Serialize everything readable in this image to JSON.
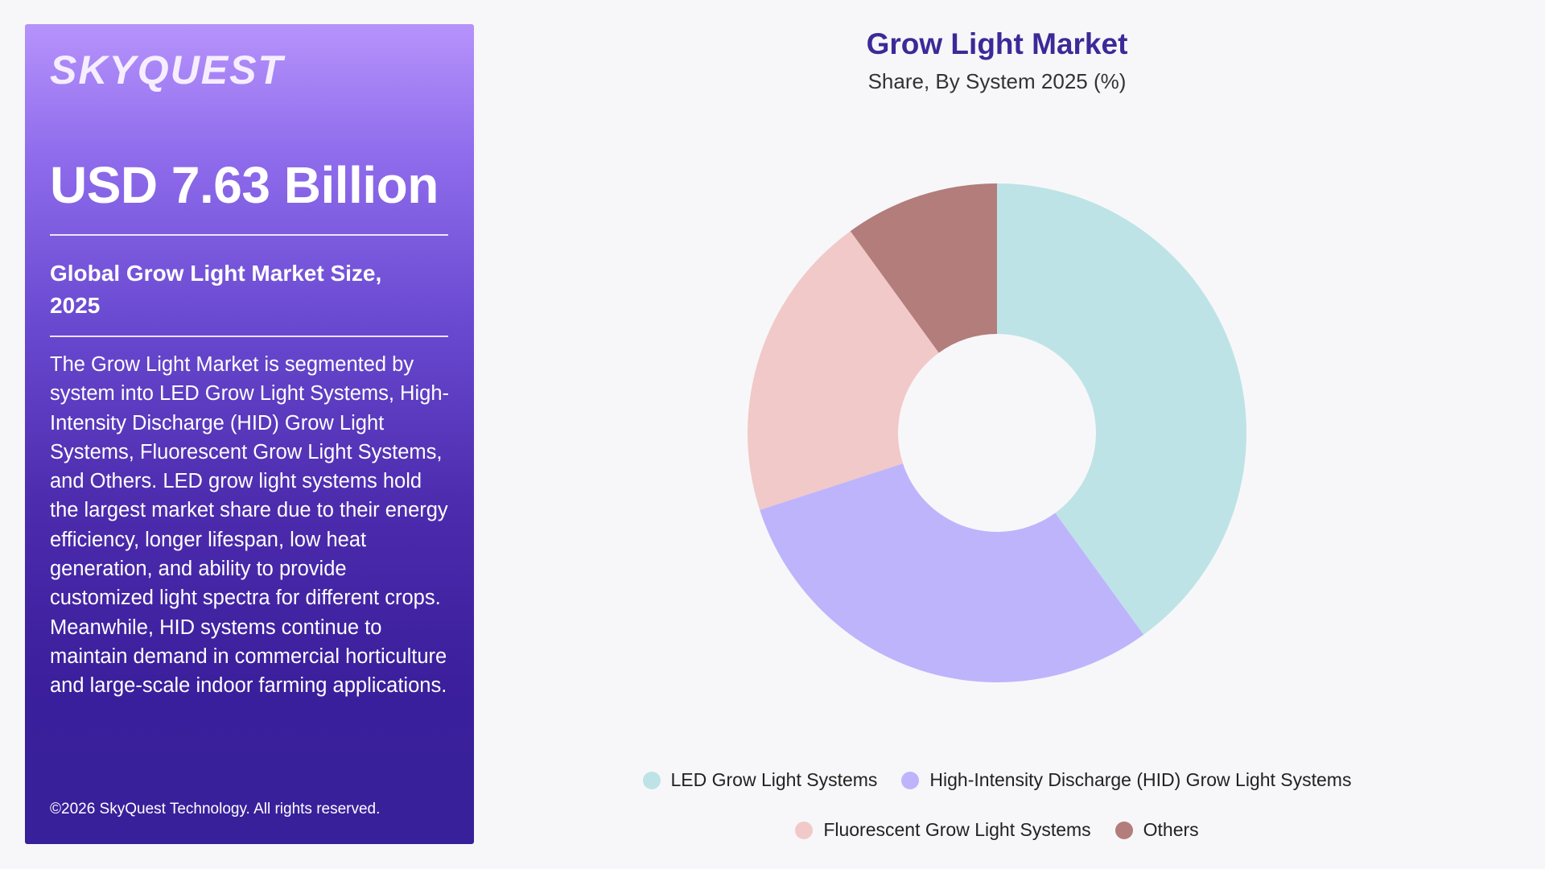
{
  "panel": {
    "logo": "SKYQUEST",
    "value": "USD 7.63 Billion",
    "subtitle": "Global Grow Light Market Size, 2025",
    "description": "The Grow Light Market is segmented by system into LED Grow Light Systems, High-Intensity Discharge (HID) Grow Light Systems, Fluorescent Grow Light Systems, and Others. LED grow light systems hold the largest market share due to their energy efficiency, longer lifespan, low heat generation, and ability to provide customized light spectra for different crops. Meanwhile, HID systems continue to maintain demand in commercial horticulture and large-scale indoor farming applications.",
    "copyright": "©2026 SkyQuest Technology. All rights reserved."
  },
  "chart_data": {
    "type": "pie",
    "title": "Grow Light Market",
    "subtitle": "Share, By System 2025 (%)",
    "categories": [
      "LED Grow Light Systems",
      "High-Intensity Discharge (HID) Grow Light Systems",
      "Fluorescent Grow Light Systems",
      "Others"
    ],
    "values": [
      40,
      30,
      20,
      10
    ],
    "colors": [
      "#bde3e6",
      "#beb4fc",
      "#f1c9c8",
      "#b27d7b"
    ],
    "donut": true,
    "legend_position": "bottom"
  }
}
